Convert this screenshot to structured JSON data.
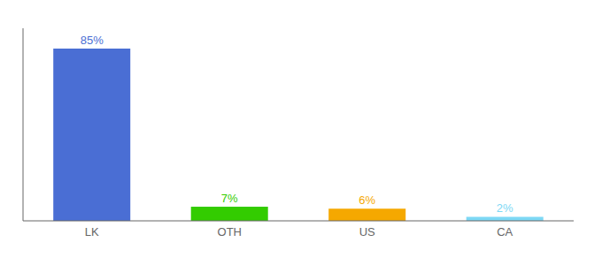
{
  "chart_data": {
    "type": "bar",
    "categories": [
      "LK",
      "OTH",
      "US",
      "CA"
    ],
    "values": [
      85,
      7,
      6,
      2
    ],
    "value_labels": [
      "85%",
      "7%",
      "6%",
      "2%"
    ],
    "colors": [
      "#4a6ed4",
      "#33cc00",
      "#f5a800",
      "#7dd8f5"
    ],
    "ylim": [
      0,
      95
    ],
    "data_labels": true,
    "tick_labels": "x"
  }
}
